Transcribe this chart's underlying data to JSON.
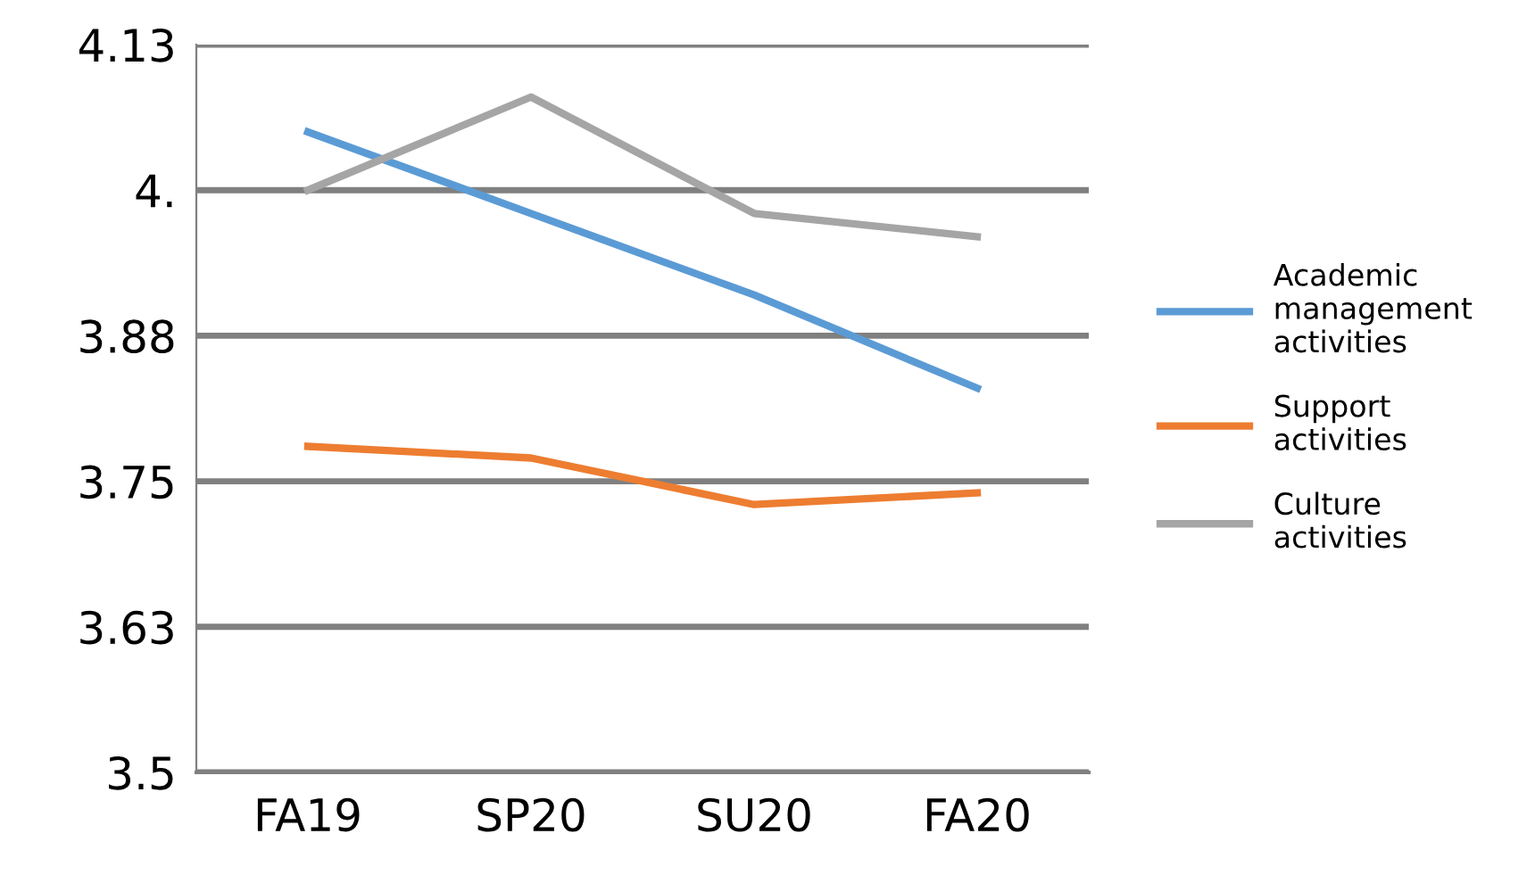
{
  "chart_data": {
    "type": "line",
    "categories": [
      "FA19",
      "SP20",
      "SU20",
      "FA20"
    ],
    "series": [
      {
        "name": "Academic\nmanagement\nactivities",
        "color": "#5b9bd5",
        "values": [
          4.05,
          3.98,
          3.91,
          3.83
        ]
      },
      {
        "name": "Support\nactivities",
        "color": "#ed7d31",
        "values": [
          3.78,
          3.77,
          3.73,
          3.74
        ]
      },
      {
        "name": "Culture\nactivities",
        "color": "#a5a5a5",
        "values": [
          4.0,
          4.08,
          3.98,
          3.96
        ]
      }
    ],
    "ylim": [
      3.5,
      4.125
    ],
    "yticks": [
      3.5,
      {
        "value": 3.625,
        "label": "3.63"
      },
      3.75,
      {
        "value": 3.875,
        "label": "3.88"
      },
      {
        "value": 4.0,
        "label": "4."
      },
      {
        "value": 4.125,
        "label": "4.13"
      }
    ],
    "grid": "y",
    "legend": "right",
    "marker": "none",
    "line_style": "solid"
  }
}
